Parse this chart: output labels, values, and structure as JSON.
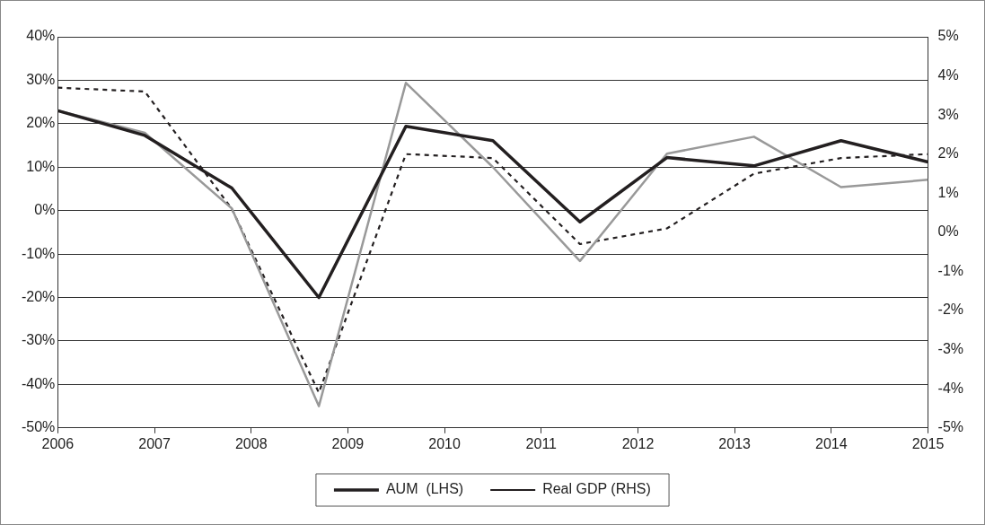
{
  "chart_data": {
    "type": "line",
    "x": [
      2006,
      2006.9,
      2007.8,
      2008.7,
      2009.6,
      2010.5,
      2011.4,
      2012.3,
      2013.2,
      2014.1,
      2015
    ],
    "xlim": [
      2006,
      2015
    ],
    "xticks": [
      2006,
      2007,
      2008,
      2009,
      2010,
      2011,
      2012,
      2013,
      2014,
      2015
    ],
    "ylim": [
      -50,
      40
    ],
    "yticks": [
      {
        "value": -50,
        "label": "-50%"
      },
      {
        "value": -40,
        "label": "-40%"
      },
      {
        "value": -30,
        "label": "-30%"
      },
      {
        "value": -20,
        "label": "-20%"
      },
      {
        "value": -10,
        "label": "-10%"
      },
      {
        "value": 0,
        "label": "0%"
      },
      {
        "value": 10,
        "label": "10%"
      },
      {
        "value": 20,
        "label": "20%"
      },
      {
        "value": 30,
        "label": "30%"
      },
      {
        "value": 40,
        "label": "40%"
      }
    ],
    "y2lim": [
      -5,
      5
    ],
    "y2ticks": [
      {
        "value": -5,
        "label": "-5%"
      },
      {
        "value": -4,
        "label": "-4%"
      },
      {
        "value": -3,
        "label": "-3%"
      },
      {
        "value": -2,
        "label": "-2%"
      },
      {
        "value": -1,
        "label": "-1%"
      },
      {
        "value": 0,
        "label": "0%"
      },
      {
        "value": 1,
        "label": "1%"
      },
      {
        "value": 2,
        "label": "2%"
      },
      {
        "value": 3,
        "label": "3%"
      },
      {
        "value": 4,
        "label": "4%"
      },
      {
        "value": 5,
        "label": "5%"
      }
    ],
    "grid": "y",
    "legend": "bottom",
    "marker": "none",
    "series": [
      {
        "name": "AUM  (LHS)",
        "color": "#231f20",
        "values": [
          23,
          17.3,
          5.2,
          -20,
          19.4,
          16.1,
          -2.6,
          12.2,
          10.3,
          16.1,
          11.2
        ]
      },
      {
        "color": "#999999",
        "values": [
          23,
          17.9,
          0.5,
          -45,
          29.4,
          10,
          -11.6,
          13.1,
          17,
          5.4,
          7.1
        ]
      },
      {
        "name": "Real GDP (RHS)",
        "color": "#231f20",
        "axis": "y2",
        "line_style": "dashed",
        "values": [
          3.7,
          3.6,
          0.6,
          -4.1,
          2,
          1.9,
          -0.3,
          0.1,
          1.5,
          1.9,
          2
        ]
      }
    ]
  }
}
